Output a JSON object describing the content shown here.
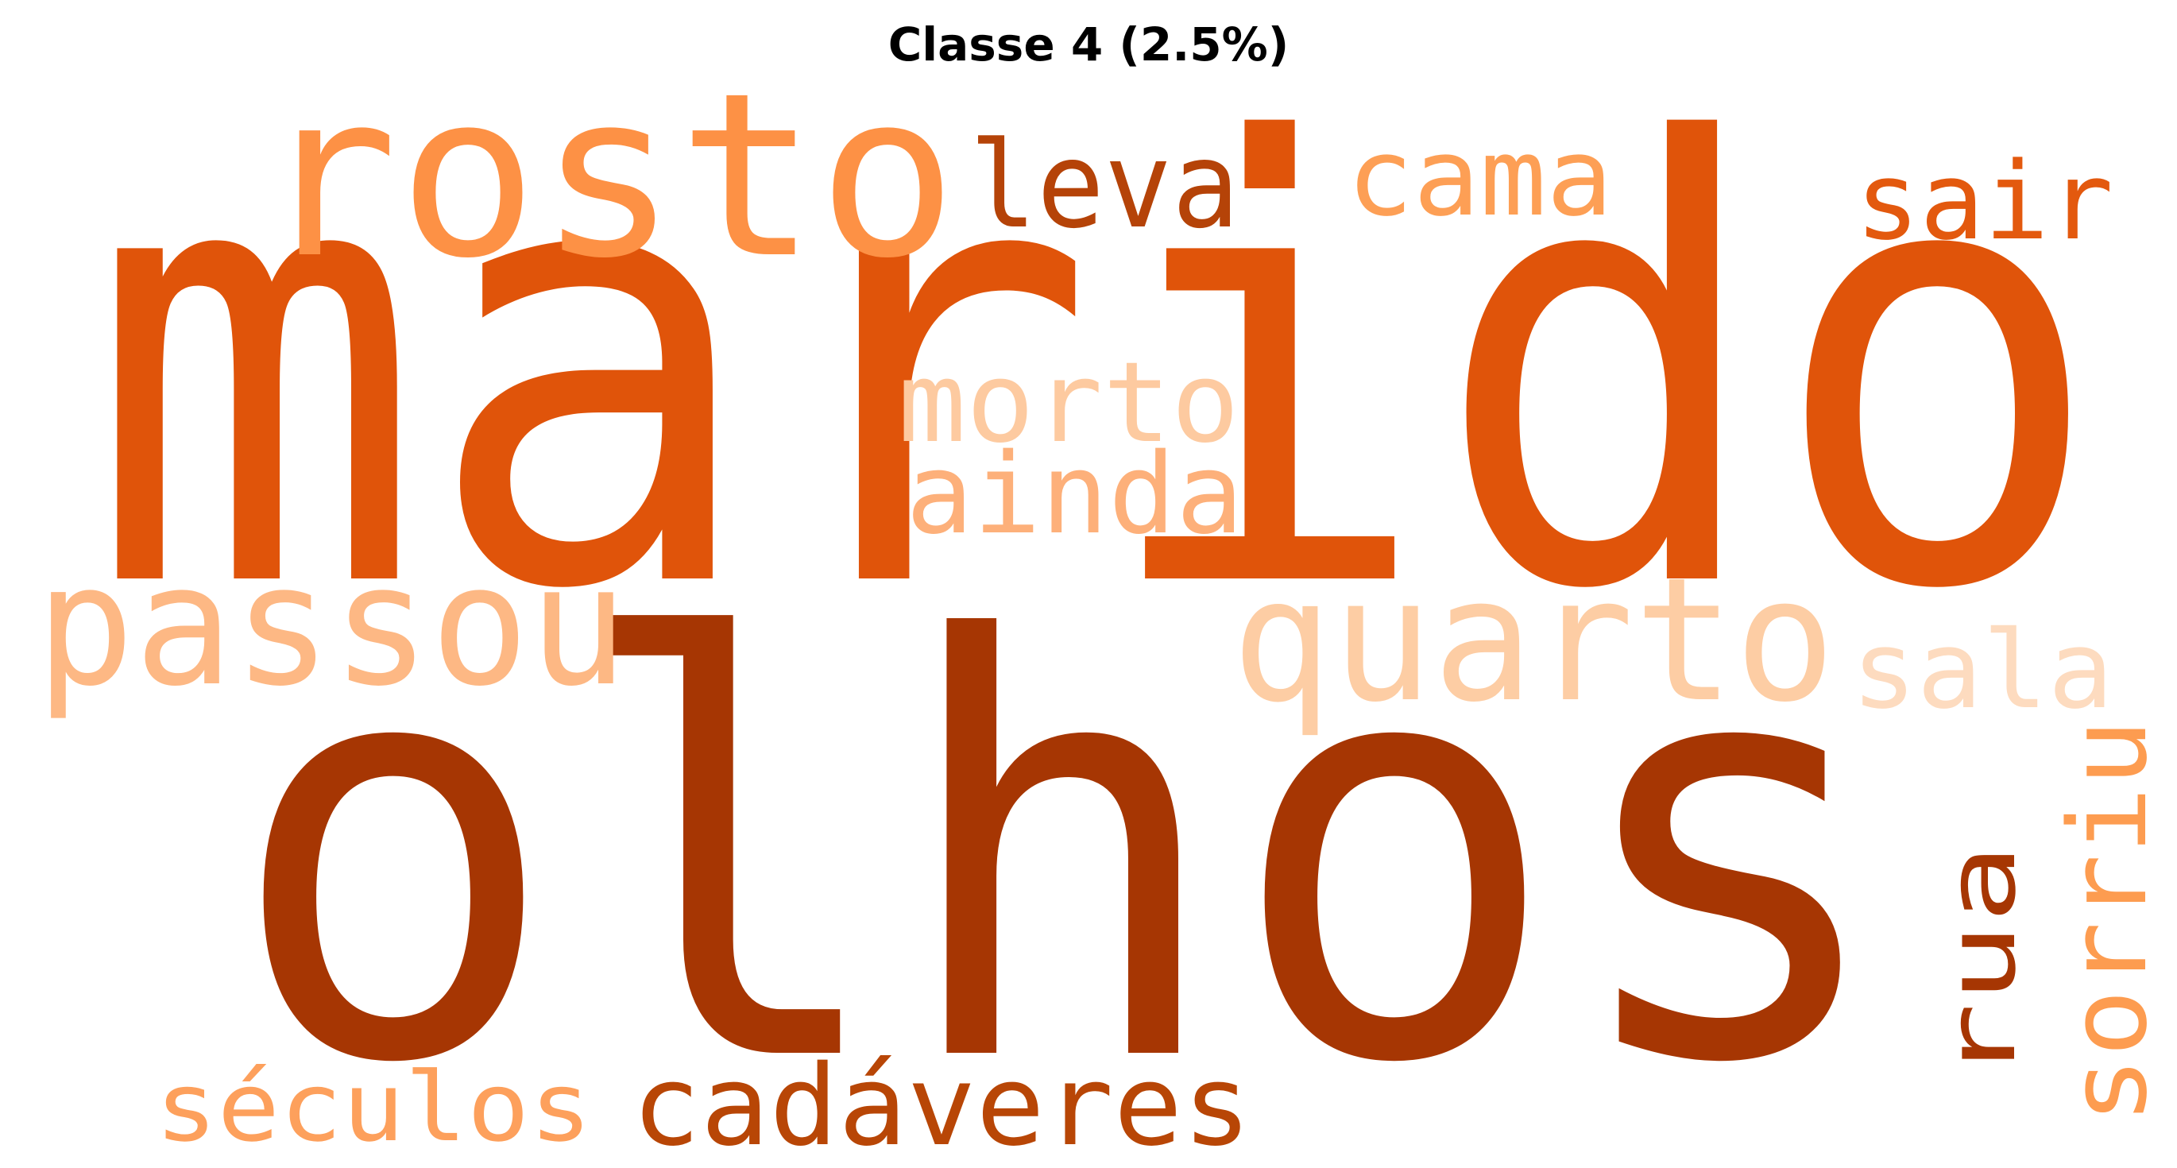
{
  "title": "Classe 4 (2.5%)",
  "words": [
    {
      "text": "marido",
      "color": "#e0540a"
    },
    {
      "text": "olhos",
      "color": "#a63603"
    },
    {
      "text": "rosto",
      "color": "#fd9145"
    },
    {
      "text": "leva",
      "color": "#b54308"
    },
    {
      "text": "cama",
      "color": "#fd9f55"
    },
    {
      "text": "sair",
      "color": "#e3590e"
    },
    {
      "text": "morto",
      "color": "#fdcaa0"
    },
    {
      "text": "ainda",
      "color": "#fdb07a"
    },
    {
      "text": "passou",
      "color": "#fdb884"
    },
    {
      "text": "quarto",
      "color": "#fdcda4"
    },
    {
      "text": "sala",
      "color": "#fddbbf"
    },
    {
      "text": "sorriu",
      "color": "#fd9c50"
    },
    {
      "text": "rua",
      "color": "#a63603"
    },
    {
      "text": "séculos",
      "color": "#fda05c"
    },
    {
      "text": "cadáveres",
      "color": "#b84606"
    }
  ]
}
